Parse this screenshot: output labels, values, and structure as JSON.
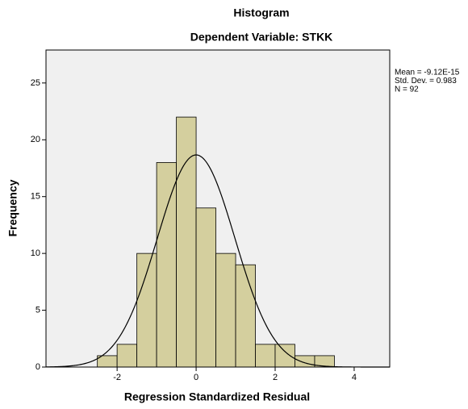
{
  "chart_data": {
    "type": "histogram",
    "title": "Histogram",
    "subtitle": "Dependent Variable: STKK",
    "x_label": "Regression Standardized Residual",
    "y_label": "Frequency",
    "bins": [
      -2.5,
      -2,
      -1.5,
      -1,
      -0.5,
      0,
      0.5,
      1,
      1.5,
      2,
      2.5,
      3,
      3.5
    ],
    "values": [
      1,
      2,
      10,
      18,
      22,
      14,
      10,
      9,
      2,
      2,
      1,
      1
    ],
    "color": "#d4cf9e",
    "xlim": [
      -3.8,
      4.9
    ],
    "ylim": [
      0,
      27.9
    ],
    "xticks": [
      -2,
      0,
      2,
      4
    ],
    "yticks": [
      0,
      5,
      10,
      15,
      20,
      25
    ],
    "annotations": [
      "Mean = -9.12E-15",
      "Std. Dev. = 0.983",
      "N = 92"
    ],
    "curve": {
      "mean": -9.12e-15,
      "std_dev": 0.983,
      "n": 92
    }
  }
}
